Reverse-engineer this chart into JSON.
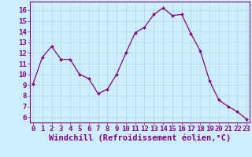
{
  "x": [
    0,
    1,
    2,
    3,
    4,
    5,
    6,
    7,
    8,
    9,
    10,
    11,
    12,
    13,
    14,
    15,
    16,
    17,
    18,
    19,
    20,
    21,
    22,
    23
  ],
  "y": [
    9.1,
    11.6,
    12.6,
    11.4,
    11.4,
    10.0,
    9.6,
    8.2,
    8.6,
    10.0,
    12.0,
    13.9,
    14.4,
    15.6,
    16.2,
    15.5,
    15.6,
    13.8,
    12.2,
    9.4,
    7.6,
    7.0,
    6.5,
    5.8
  ],
  "line_color": "#880088",
  "marker_color": "#880088",
  "bg_color": "#cceeff",
  "grid_color": "#aadddd",
  "xlabel": "Windchill (Refroidissement éolien,°C)",
  "ylim": [
    5.5,
    16.8
  ],
  "xlim": [
    -0.3,
    23.3
  ],
  "yticks": [
    6,
    7,
    8,
    9,
    10,
    11,
    12,
    13,
    14,
    15,
    16
  ],
  "xticks": [
    0,
    1,
    2,
    3,
    4,
    5,
    6,
    7,
    8,
    9,
    10,
    11,
    12,
    13,
    14,
    15,
    16,
    17,
    18,
    19,
    20,
    21,
    22,
    23
  ],
  "axis_color": "#880088",
  "tick_font_size": 6.5,
  "label_font_size": 7.5
}
